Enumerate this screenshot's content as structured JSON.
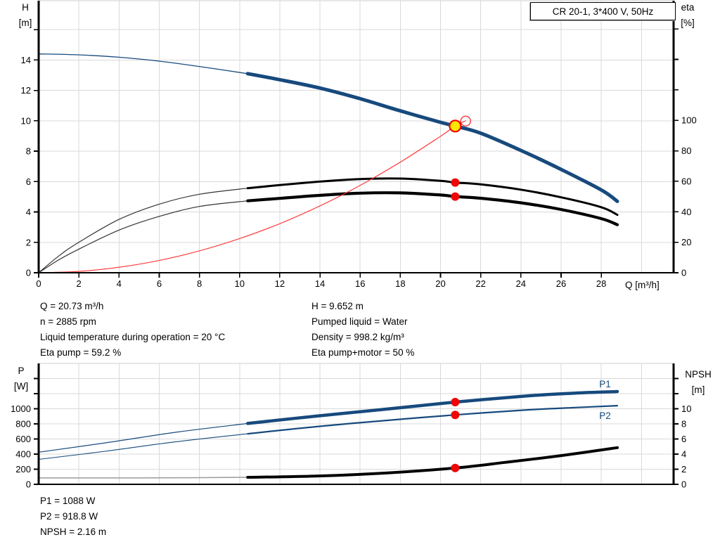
{
  "title_box": "CR 20-1, 3*400 V, 50Hz",
  "info_top_left": [
    "Q = 20.73 m³/h",
    "n = 2885 rpm",
    "Liquid temperature during operation = 20 °C",
    "Eta pump = 59.2 %"
  ],
  "info_top_right": [
    "H = 9.652 m",
    "Pumped liquid = Water",
    "Density = 998.2 kg/m³",
    "Eta pump+motor = 50 %"
  ],
  "info_bottom": [
    "P1 = 1088 W",
    "P2 = 918.8 W",
    "NPSH = 2.16 m"
  ],
  "colors": {
    "curve_blue": "#174a7d",
    "curve_black": "#000000",
    "curve_black_thin": "#333333",
    "npsh_ext_gray": "#9a9a9a",
    "red": "#ff2a2a",
    "dot_red": "#ee0505",
    "duty_yellow": "#ffe600",
    "grid": "#d9d9d9",
    "border_gray": "#cfcfcf",
    "axis": "#000000",
    "label_blue": "#174a7d"
  },
  "chart_data": [
    {
      "type": "line",
      "title": "CR 20-1, 3*400 V, 50Hz",
      "duty_split_q": 10.4,
      "x_axis": {
        "label": "Q [m³/h]",
        "lim": [
          0,
          31.6
        ],
        "ticks": [
          0,
          2,
          4,
          6,
          8,
          10,
          12,
          14,
          16,
          18,
          20,
          22,
          24,
          26,
          28
        ],
        "tick_labels": [
          "0",
          "2",
          "4",
          "6",
          "8",
          "10",
          "12",
          "14",
          "16",
          "18",
          "20",
          "22",
          "24",
          "26",
          "28"
        ],
        "grid": [
          2,
          4,
          6,
          8,
          10,
          12,
          14,
          16,
          18,
          20,
          22,
          24,
          26,
          28,
          30
        ]
      },
      "y_left": {
        "label_lines": [
          "H",
          "[m]"
        ],
        "lim": [
          0,
          17.9
        ],
        "ticks": [
          0,
          2,
          4,
          6,
          8,
          10,
          12,
          14,
          16
        ],
        "tick_labels": [
          "0",
          "2",
          "4",
          "6",
          "8",
          "10",
          "12",
          "14",
          ""
        ],
        "grid": [
          2,
          4,
          6,
          8,
          10,
          12,
          14,
          16
        ]
      },
      "y_right": {
        "label_lines": [
          "eta",
          "[%]"
        ],
        "lim": [
          0,
          178.5
        ],
        "ticks": [
          0,
          20,
          40,
          60,
          80,
          100,
          120,
          140,
          160
        ],
        "tick_labels": [
          "0",
          "20",
          "40",
          "60",
          "80",
          "100",
          "",
          "",
          ""
        ]
      },
      "series": [
        {
          "name": "head",
          "axis": "left",
          "color": "curve_blue",
          "w_thin": 1.3,
          "w_thick": 5,
          "split": true,
          "points": [
            [
              0,
              14.4
            ],
            [
              2,
              14.34
            ],
            [
              4,
              14.18
            ],
            [
              6,
              13.92
            ],
            [
              8,
              13.57
            ],
            [
              10.4,
              13.1
            ],
            [
              12,
              12.7
            ],
            [
              14,
              12.15
            ],
            [
              16,
              11.45
            ],
            [
              18,
              10.65
            ],
            [
              20,
              9.9
            ],
            [
              20.73,
              9.652
            ],
            [
              22,
              9.18
            ],
            [
              24,
              8.05
            ],
            [
              26,
              6.8
            ],
            [
              28,
              5.45
            ],
            [
              28.8,
              4.7
            ]
          ]
        },
        {
          "name": "eta-pump",
          "axis": "right",
          "color": "curve_black",
          "thin_color": "curve_black_thin",
          "w_thin": 1.2,
          "w_thick": 3,
          "split": true,
          "points": [
            [
              0,
              0
            ],
            [
              1,
              11
            ],
            [
              2,
              20
            ],
            [
              4,
              35
            ],
            [
              6,
              45
            ],
            [
              8,
              51.5
            ],
            [
              10.4,
              55.5
            ],
            [
              12,
              57.5
            ],
            [
              14,
              59.8
            ],
            [
              16,
              61.5
            ],
            [
              18,
              61.8
            ],
            [
              20,
              60.3
            ],
            [
              20.73,
              59.2
            ],
            [
              22,
              58.0
            ],
            [
              24,
              54.5
            ],
            [
              26,
              49.5
            ],
            [
              28,
              43.0
            ],
            [
              28.8,
              38.0
            ]
          ]
        },
        {
          "name": "eta-pump-motor",
          "axis": "right",
          "color": "curve_black",
          "thin_color": "curve_black_thin",
          "w_thin": 1.2,
          "w_thick": 4.2,
          "split": true,
          "points": [
            [
              0,
              0
            ],
            [
              1,
              8.5
            ],
            [
              2,
              15.5
            ],
            [
              4,
              28
            ],
            [
              6,
              37
            ],
            [
              8,
              43.5
            ],
            [
              10.4,
              47.2
            ],
            [
              12,
              48.8
            ],
            [
              14,
              50.8
            ],
            [
              16,
              52.2
            ],
            [
              18,
              52.4
            ],
            [
              20,
              51.0
            ],
            [
              20.73,
              50.0
            ],
            [
              22,
              48.9
            ],
            [
              24,
              45.9
            ],
            [
              26,
              41.5
            ],
            [
              28,
              35.5
            ],
            [
              28.8,
              31.5
            ]
          ]
        },
        {
          "name": "system-curve",
          "axis": "left",
          "color": "red",
          "w_thin": 1.1,
          "w_thick": 1.1,
          "split": false,
          "points": [
            [
              0,
              0
            ],
            [
              2,
              0.09
            ],
            [
              4,
              0.36
            ],
            [
              6,
              0.81
            ],
            [
              8,
              1.44
            ],
            [
              10,
              2.25
            ],
            [
              12,
              3.23
            ],
            [
              14,
              4.4
            ],
            [
              16,
              5.75
            ],
            [
              18,
              7.28
            ],
            [
              20,
              8.98
            ],
            [
              20.73,
              9.652
            ],
            [
              21.25,
              10.0
            ]
          ]
        }
      ],
      "markers": [
        {
          "kind": "ghost",
          "axis": "left",
          "q": 21.25,
          "v": 9.98
        },
        {
          "kind": "duty",
          "axis": "left",
          "q": 20.73,
          "v": 9.652
        },
        {
          "kind": "dot",
          "axis": "right",
          "q": 20.73,
          "v": 59.2
        },
        {
          "kind": "dot",
          "axis": "right",
          "q": 20.73,
          "v": 50
        }
      ]
    },
    {
      "type": "line",
      "title": "",
      "duty_split_q": 10.4,
      "x_axis": {
        "label": "",
        "lim": [
          0,
          31.6
        ],
        "ticks": [],
        "tick_labels": [],
        "grid": [
          2,
          4,
          6,
          8,
          10,
          12,
          14,
          16,
          18,
          20,
          22,
          24,
          26,
          28,
          30
        ]
      },
      "y_left": {
        "label_lines": [
          "P",
          "[W]"
        ],
        "lim": [
          0,
          1600
        ],
        "ticks": [
          0,
          200,
          400,
          600,
          800,
          1000,
          1200,
          1400
        ],
        "tick_labels": [
          "0",
          "200",
          "400",
          "600",
          "800",
          "1000",
          "",
          ""
        ],
        "grid": [
          200,
          400,
          600,
          800,
          1000,
          1200,
          1400
        ]
      },
      "y_right": {
        "label_lines": [
          "NPSH",
          "[m]"
        ],
        "lim": [
          0,
          16
        ],
        "ticks": [
          0,
          2,
          4,
          6,
          8,
          10,
          12,
          14
        ],
        "tick_labels": [
          "0",
          "2",
          "4",
          "6",
          "8",
          "10",
          "",
          ""
        ]
      },
      "series": [
        {
          "name": "p1",
          "axis": "left",
          "color": "curve_blue",
          "w_thin": 1.2,
          "w_thick": 4.5,
          "split": true,
          "points": [
            [
              0,
              425
            ],
            [
              3.3,
              548
            ],
            [
              6.8,
              688
            ],
            [
              10.4,
              806
            ],
            [
              13.8,
              902
            ],
            [
              17.3,
              995
            ],
            [
              20.73,
              1088
            ],
            [
              24.3,
              1170
            ],
            [
              26.7,
              1207
            ],
            [
              28.8,
              1228
            ]
          ]
        },
        {
          "name": "p2",
          "axis": "left",
          "color": "curve_blue",
          "w_thin": 1.1,
          "w_thick": 2.2,
          "split": true,
          "points": [
            [
              0,
              330
            ],
            [
              3.3,
              437
            ],
            [
              6.8,
              562
            ],
            [
              10.4,
              669
            ],
            [
              13.8,
              763
            ],
            [
              17.3,
              846
            ],
            [
              20.73,
              918.8
            ],
            [
              24.3,
              985
            ],
            [
              26.7,
              1016
            ],
            [
              28.8,
              1041
            ]
          ]
        },
        {
          "name": "npsh",
          "axis": "right",
          "color": "curve_black",
          "thin_color": "npsh_ext_gray",
          "w_thin": 1.5,
          "w_thick": 4,
          "split": true,
          "points": [
            [
              0,
              0.85
            ],
            [
              5,
              0.85
            ],
            [
              8,
              0.88
            ],
            [
              10.4,
              0.93
            ],
            [
              13.8,
              1.1
            ],
            [
              17.3,
              1.5
            ],
            [
              20.73,
              2.16
            ],
            [
              23.2,
              2.9
            ],
            [
              26,
              3.8
            ],
            [
              28.8,
              4.86
            ]
          ]
        }
      ],
      "series_labels": [
        {
          "text": "P1",
          "axis": "left",
          "q": 27.9,
          "v": 1285
        },
        {
          "text": "P2",
          "axis": "left",
          "q": 27.9,
          "v": 867
        }
      ],
      "markers": [
        {
          "kind": "dot",
          "axis": "left",
          "q": 20.73,
          "v": 1088
        },
        {
          "kind": "dot",
          "axis": "left",
          "q": 20.73,
          "v": 918.8
        },
        {
          "kind": "dot",
          "axis": "right",
          "q": 20.73,
          "v": 2.16
        }
      ]
    }
  ]
}
